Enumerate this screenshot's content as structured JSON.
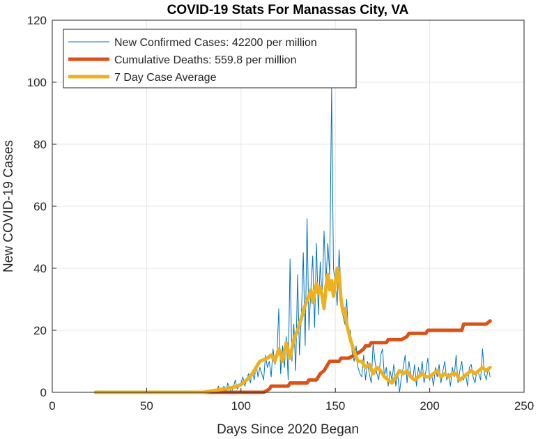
{
  "chart_data": {
    "type": "line",
    "title": "COVID-19 Stats For Manassas City, VA",
    "xlabel": "Days Since 2020 Began",
    "ylabel": "New COVID-19 Cases",
    "xlim": [
      0,
      250
    ],
    "ylim": [
      0,
      120
    ],
    "xticks": [
      0,
      50,
      100,
      150,
      200,
      250
    ],
    "yticks": [
      0,
      20,
      40,
      60,
      80,
      100,
      120
    ],
    "grid": true,
    "legend_position": "top-left",
    "series": [
      {
        "name": "New Confirmed Cases: 42200 per million",
        "color": "#0072BD",
        "line": "thin",
        "x": [
          23,
          30,
          40,
          50,
          60,
          70,
          80,
          85,
          86,
          87,
          88,
          89,
          90,
          91,
          92,
          93,
          94,
          95,
          96,
          97,
          98,
          99,
          100,
          101,
          102,
          103,
          104,
          105,
          106,
          107,
          108,
          109,
          110,
          111,
          112,
          113,
          114,
          115,
          116,
          117,
          118,
          119,
          120,
          121,
          122,
          123,
          124,
          125,
          126,
          127,
          128,
          129,
          130,
          131,
          132,
          133,
          134,
          135,
          136,
          137,
          138,
          139,
          140,
          141,
          142,
          143,
          144,
          145,
          146,
          147,
          148,
          149,
          150,
          151,
          152,
          153,
          154,
          155,
          156,
          157,
          158,
          159,
          160,
          161,
          162,
          163,
          164,
          165,
          166,
          167,
          168,
          169,
          170,
          171,
          172,
          173,
          174,
          175,
          176,
          177,
          178,
          179,
          180,
          181,
          182,
          183,
          184,
          185,
          186,
          187,
          188,
          189,
          190,
          191,
          192,
          193,
          194,
          195,
          196,
          197,
          198,
          199,
          200,
          201,
          202,
          203,
          204,
          205,
          206,
          207,
          208,
          209,
          210,
          211,
          212,
          213,
          214,
          215,
          216,
          217,
          218,
          219,
          220,
          221,
          222,
          223,
          224,
          225,
          226,
          227,
          228,
          229,
          230,
          231,
          232
        ],
        "y": [
          0,
          0,
          0,
          0,
          0,
          0,
          0,
          0,
          1,
          0,
          2,
          0,
          1,
          2,
          0,
          3,
          1,
          0,
          2,
          4,
          1,
          2,
          3,
          5,
          2,
          4,
          6,
          3,
          7,
          4,
          9,
          5,
          8,
          6,
          4,
          12,
          8,
          10,
          5,
          14,
          9,
          11,
          27,
          6,
          15,
          8,
          18,
          4,
          43,
          10,
          22,
          7,
          38,
          12,
          25,
          45,
          15,
          56,
          20,
          33,
          44,
          21,
          48,
          25,
          42,
          30,
          52,
          35,
          48,
          38,
          98,
          40,
          35,
          28,
          46,
          32,
          25,
          22,
          30,
          18,
          20,
          12,
          10,
          15,
          8,
          6,
          5,
          12,
          4,
          10,
          6,
          3,
          16,
          10,
          6,
          4,
          12,
          14,
          5,
          8,
          2,
          7,
          4,
          9,
          2,
          6,
          0,
          5,
          8,
          12,
          3,
          10,
          6,
          4,
          9,
          2,
          8,
          5,
          10,
          3,
          7,
          11,
          4,
          6,
          2,
          8,
          5,
          9,
          3,
          7,
          10,
          4,
          6,
          2,
          8,
          5,
          12,
          3,
          7,
          10,
          4,
          6,
          2,
          8,
          9,
          5,
          3,
          7,
          6,
          4,
          14,
          6,
          4,
          8,
          5
        ],
        "note_x": "days"
      },
      {
        "name": "Cumulative Deaths: 559.8 per million",
        "color": "#D95319",
        "line": "thick",
        "x": [
          23,
          112,
          115,
          116,
          125,
          126,
          127,
          135,
          136,
          137,
          140,
          141,
          142,
          144,
          145,
          146,
          147,
          148,
          152,
          153,
          157,
          160,
          163,
          165,
          166,
          168,
          169,
          170,
          177,
          178,
          182,
          185,
          188,
          189,
          198,
          199,
          217,
          218,
          230,
          232
        ],
        "y": [
          0,
          0,
          1,
          2,
          2,
          3,
          3,
          3,
          4,
          4,
          4,
          5,
          6,
          7,
          8,
          9,
          10,
          10,
          10,
          11,
          11,
          12,
          13,
          14,
          15,
          15,
          16,
          16,
          16,
          17,
          17,
          17,
          18,
          19,
          19,
          20,
          20,
          22,
          22,
          23
        ]
      },
      {
        "name": "7 Day Case Average",
        "color": "#EDB120",
        "line": "thick",
        "x": [
          23,
          40,
          60,
          80,
          85,
          88,
          90,
          92,
          95,
          98,
          100,
          103,
          106,
          108,
          110,
          112,
          114,
          116,
          118,
          120,
          122,
          124,
          126,
          128,
          130,
          132,
          134,
          136,
          137,
          138,
          140,
          141,
          142,
          143,
          144,
          145,
          146,
          147,
          148,
          149,
          150,
          151,
          152,
          153,
          154,
          155,
          156,
          158,
          160,
          162,
          164,
          166,
          168,
          170,
          172,
          174,
          176,
          178,
          180,
          182,
          184,
          186,
          188,
          190,
          192,
          194,
          196,
          198,
          200,
          202,
          204,
          206,
          208,
          210,
          212,
          214,
          216,
          218,
          220,
          222,
          224,
          226,
          228,
          230,
          232
        ],
        "y": [
          0,
          0,
          0,
          0,
          0.5,
          0.8,
          1,
          1.2,
          1.5,
          2,
          2.5,
          4,
          6,
          8,
          10,
          10.5,
          11,
          12,
          10,
          14,
          10,
          16,
          11,
          17,
          20,
          24,
          28,
          31,
          33,
          29,
          35,
          32,
          34,
          31,
          27,
          34,
          38,
          33,
          36,
          31,
          35,
          40,
          38,
          30,
          26,
          27,
          22,
          17,
          13,
          10,
          10,
          8,
          9,
          6,
          8,
          7,
          5,
          4,
          3,
          5,
          7,
          6,
          7,
          5,
          4,
          5,
          6,
          5,
          5,
          6,
          7,
          5,
          6,
          5,
          6,
          6,
          4,
          5,
          6,
          7,
          6,
          7,
          8,
          7,
          8
        ]
      }
    ]
  }
}
